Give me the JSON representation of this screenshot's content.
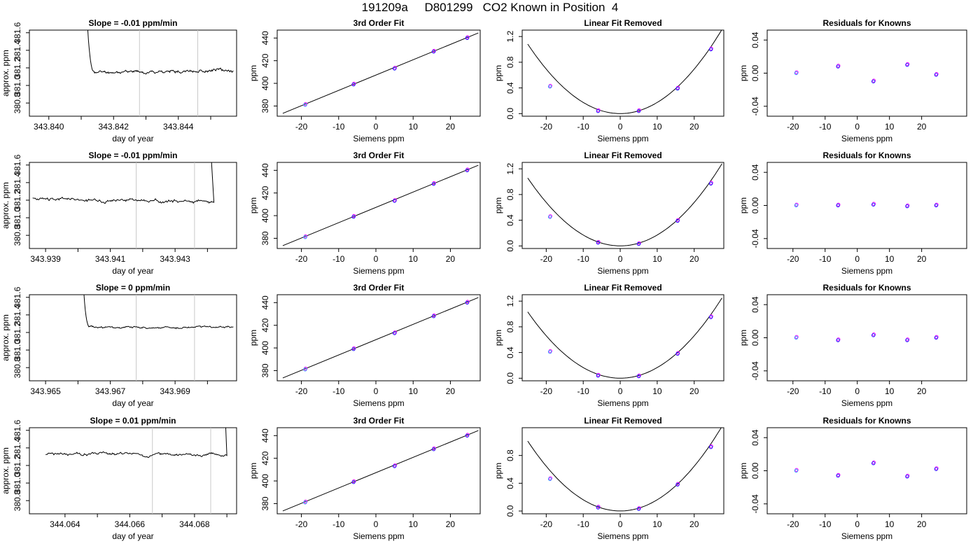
{
  "main_title": "191209a     D801299   CO2 Known in Position  4",
  "chart_data": [
    {
      "type": "line",
      "row": 1,
      "title": "Slope =  -0.01  ppm/min",
      "xlabel": "day of year",
      "ylabel": "approx. ppm",
      "xlim": [
        343.8394,
        343.8458
      ],
      "ylim": [
        380.65,
        381.63
      ],
      "xticks": [
        343.84,
        343.841,
        343.842,
        343.843,
        343.844,
        343.845
      ],
      "xtick_labels": [
        "343.840",
        "",
        "343.842",
        "",
        "343.844",
        ""
      ],
      "yticks": [
        380.8,
        381.0,
        381.2,
        381.4,
        381.6
      ],
      "ytick_labels": [
        "380.8",
        "381.0",
        "381.2",
        "381.4",
        "381.6"
      ],
      "vlines": [
        343.8428,
        343.8446
      ],
      "trace": {
        "x_start": 343.8411,
        "x_end": 343.8457,
        "spike_end": 343.84118,
        "baseline": 381.15,
        "end_level": 381.17,
        "noise": 0.012,
        "spike_at": "start",
        "seed": 11
      }
    },
    {
      "type": "line",
      "row": 2,
      "title": "Slope =  -0.01  ppm/min",
      "xlabel": "day of year",
      "ylabel": "approx. ppm",
      "xlim": [
        343.9385,
        343.9449
      ],
      "ylim": [
        380.65,
        381.63
      ],
      "xticks": [
        343.939,
        343.94,
        343.941,
        343.942,
        343.943,
        343.944
      ],
      "xtick_labels": [
        "343.939",
        "",
        "343.941",
        "",
        "343.943",
        ""
      ],
      "yticks": [
        380.8,
        381.0,
        381.2,
        381.4,
        381.6
      ],
      "ytick_labels": [
        "380.8",
        "381.0",
        "381.2",
        "381.4",
        "381.6"
      ],
      "vlines": [
        343.9418,
        343.9436
      ],
      "trace": {
        "x_start": 343.9386,
        "x_end": 343.9442,
        "spike_end": 343.94412,
        "baseline": 381.21,
        "end_level": 381.19,
        "noise": 0.014,
        "spike_at": "end",
        "seed": 23
      }
    },
    {
      "type": "line",
      "row": 3,
      "title": "Slope =  0  ppm/min",
      "xlabel": "day of year",
      "ylabel": "approx. ppm",
      "xlim": [
        343.9645,
        343.9709
      ],
      "ylim": [
        380.65,
        381.63
      ],
      "xticks": [
        343.965,
        343.966,
        343.967,
        343.968,
        343.969,
        343.97
      ],
      "xtick_labels": [
        "343.965",
        "",
        "343.967",
        "",
        "343.969",
        ""
      ],
      "yticks": [
        380.8,
        381.0,
        381.2,
        381.4,
        381.6
      ],
      "ytick_labels": [
        "380.8",
        "381.0",
        "381.2",
        "381.4",
        "381.6"
      ],
      "vlines": [
        343.9678,
        343.9696
      ],
      "trace": {
        "x_start": 343.9661,
        "x_end": 343.9708,
        "spike_end": 343.96614,
        "baseline": 381.26,
        "end_level": 381.26,
        "noise": 0.008,
        "spike_at": "start",
        "seed": 37
      }
    },
    {
      "type": "line",
      "row": 4,
      "title": "Slope =  0.01  ppm/min",
      "xlabel": "day of year",
      "ylabel": "approx. ppm",
      "xlim": [
        344.0629,
        344.0693
      ],
      "ylim": [
        380.65,
        381.63
      ],
      "xticks": [
        344.064,
        344.065,
        344.066,
        344.067,
        344.068,
        344.069
      ],
      "xtick_labels": [
        "344.064",
        "",
        "344.066",
        "",
        "344.068",
        ""
      ],
      "yticks": [
        380.8,
        381.0,
        381.2,
        381.4,
        381.6
      ],
      "ytick_labels": [
        "380.8",
        "381.0",
        "381.2",
        "381.4",
        "381.6"
      ],
      "vlines": [
        344.0667,
        344.0685
      ],
      "trace": {
        "x_start": 344.0634,
        "x_end": 344.069,
        "spike_end": 344.06896,
        "baseline": 381.33,
        "end_level": 381.32,
        "noise": 0.012,
        "spike_at": "end",
        "seed": 51
      }
    },
    {
      "type": "scatter",
      "row": 1,
      "title": "3rd Order Fit",
      "xlabel": "Siemens ppm",
      "ylabel": "ppm",
      "xlim": [
        -26.5,
        28
      ],
      "ylim": [
        371,
        447
      ],
      "xticks": [
        -20,
        -10,
        0,
        10,
        20
      ],
      "yticks": [
        380,
        400,
        420,
        440
      ],
      "points": [
        {
          "x": -19,
          "y": 381
        },
        {
          "x": -6,
          "y": 399
        },
        {
          "x": 5,
          "y": 413
        },
        {
          "x": 15.5,
          "y": 428
        },
        {
          "x": 24.5,
          "y": 440
        }
      ],
      "line": [
        {
          "x": -25,
          "y": 373.5
        },
        {
          "x": 27.5,
          "y": 444.5
        }
      ]
    },
    {
      "type": "scatter",
      "row": 2,
      "title": "3rd Order Fit",
      "xlabel": "Siemens ppm",
      "ylabel": "ppm",
      "xlim": [
        -26.5,
        28
      ],
      "ylim": [
        371,
        447
      ],
      "xticks": [
        -20,
        -10,
        0,
        10,
        20
      ],
      "yticks": [
        380,
        400,
        420,
        440
      ],
      "points": [
        {
          "x": -19,
          "y": 381
        },
        {
          "x": -6,
          "y": 399
        },
        {
          "x": 5,
          "y": 413
        },
        {
          "x": 15.5,
          "y": 428
        },
        {
          "x": 24.5,
          "y": 440
        }
      ],
      "line": [
        {
          "x": -25,
          "y": 373.5
        },
        {
          "x": 27.5,
          "y": 444.5
        }
      ]
    },
    {
      "type": "scatter",
      "row": 3,
      "title": "3rd Order Fit",
      "xlabel": "Siemens ppm",
      "ylabel": "ppm",
      "xlim": [
        -26.5,
        28
      ],
      "ylim": [
        371,
        447
      ],
      "xticks": [
        -20,
        -10,
        0,
        10,
        20
      ],
      "yticks": [
        380,
        400,
        420,
        440
      ],
      "points": [
        {
          "x": -19,
          "y": 381
        },
        {
          "x": -6,
          "y": 399
        },
        {
          "x": 5,
          "y": 413
        },
        {
          "x": 15.5,
          "y": 428
        },
        {
          "x": 24.5,
          "y": 440
        }
      ],
      "line": [
        {
          "x": -25,
          "y": 373.5
        },
        {
          "x": 27.5,
          "y": 444.5
        }
      ]
    },
    {
      "type": "scatter",
      "row": 4,
      "title": "3rd Order Fit",
      "xlabel": "Siemens ppm",
      "ylabel": "ppm",
      "xlim": [
        -26.5,
        28
      ],
      "ylim": [
        371,
        447
      ],
      "xticks": [
        -20,
        -10,
        0,
        10,
        20
      ],
      "yticks": [
        380,
        400,
        420,
        440
      ],
      "points": [
        {
          "x": -19,
          "y": 381
        },
        {
          "x": -6,
          "y": 399
        },
        {
          "x": 5,
          "y": 413
        },
        {
          "x": 15.5,
          "y": 428
        },
        {
          "x": 24.5,
          "y": 440
        }
      ],
      "line": [
        {
          "x": -25,
          "y": 373.5
        },
        {
          "x": 27.5,
          "y": 444.5
        }
      ]
    },
    {
      "type": "scatter",
      "row": 1,
      "title": "Linear Fit Removed",
      "xlabel": "Siemens ppm",
      "ylabel": "ppm",
      "xlim": [
        -26.5,
        28
      ],
      "ylim": [
        -0.04,
        1.3
      ],
      "xticks": [
        -20,
        -10,
        0,
        10,
        20
      ],
      "yticks": [
        0.0,
        0.4,
        0.8,
        1.2
      ],
      "ytick_labels": [
        "0.0",
        "0.4",
        "0.8",
        "1.2"
      ],
      "points": [
        {
          "x": -19,
          "y": 0.42
        },
        {
          "x": -6,
          "y": 0.04
        },
        {
          "x": 5,
          "y": 0.04
        },
        {
          "x": 15.5,
          "y": 0.39
        },
        {
          "x": 24.5,
          "y": 1.0
        }
      ],
      "curve": {
        "a": 0.00173,
        "b": 0,
        "c": 0.001,
        "x0": -25,
        "x1": 27.5
      }
    },
    {
      "type": "scatter",
      "row": 2,
      "title": "Linear Fit Removed",
      "xlabel": "Siemens ppm",
      "ylabel": "ppm",
      "xlim": [
        -26.5,
        28
      ],
      "ylim": [
        -0.04,
        1.3
      ],
      "xticks": [
        -20,
        -10,
        0,
        10,
        20
      ],
      "yticks": [
        0.0,
        0.4,
        0.8,
        1.2
      ],
      "ytick_labels": [
        "0.0",
        "0.4",
        "0.8",
        "1.2"
      ],
      "points": [
        {
          "x": -19,
          "y": 0.45
        },
        {
          "x": -6,
          "y": 0.05
        },
        {
          "x": 5,
          "y": 0.03
        },
        {
          "x": 15.5,
          "y": 0.39
        },
        {
          "x": 24.5,
          "y": 0.97
        }
      ],
      "curve": {
        "a": 0.00169,
        "b": 0,
        "c": 0.001,
        "x0": -25,
        "x1": 27.5
      }
    },
    {
      "type": "scatter",
      "row": 3,
      "title": "Linear Fit Removed",
      "xlabel": "Siemens ppm",
      "ylabel": "ppm",
      "xlim": [
        -26.5,
        28
      ],
      "ylim": [
        -0.04,
        1.3
      ],
      "xticks": [
        -20,
        -10,
        0,
        10,
        20
      ],
      "yticks": [
        0.0,
        0.4,
        0.8,
        1.2
      ],
      "ytick_labels": [
        "0.0",
        "0.4",
        "0.8",
        "1.2"
      ],
      "points": [
        {
          "x": -19,
          "y": 0.41
        },
        {
          "x": -6,
          "y": 0.04
        },
        {
          "x": 5,
          "y": 0.03
        },
        {
          "x": 15.5,
          "y": 0.38
        },
        {
          "x": 24.5,
          "y": 0.95
        }
      ],
      "curve": {
        "a": 0.00165,
        "b": 0,
        "c": 0.001,
        "x0": -25,
        "x1": 27.5
      }
    },
    {
      "type": "scatter",
      "row": 4,
      "title": "Linear Fit Removed",
      "xlabel": "Siemens ppm",
      "ylabel": "ppm",
      "xlim": [
        -26.5,
        28
      ],
      "ylim": [
        -0.04,
        1.2
      ],
      "xticks": [
        -20,
        -10,
        0,
        10,
        20
      ],
      "yticks": [
        0.0,
        0.4,
        0.8
      ],
      "ytick_labels": [
        "0.0",
        "0.4",
        "0.8"
      ],
      "points": [
        {
          "x": -19,
          "y": 0.46
        },
        {
          "x": -6,
          "y": 0.05
        },
        {
          "x": 5,
          "y": 0.03
        },
        {
          "x": 15.5,
          "y": 0.38
        },
        {
          "x": 24.5,
          "y": 0.92
        }
      ],
      "curve": {
        "a": 0.00161,
        "b": 0,
        "c": 0.001,
        "x0": -25,
        "x1": 27.5
      }
    },
    {
      "type": "scatter",
      "row": 1,
      "title": "Residuals for Knowns",
      "xlabel": "Siemens ppm",
      "ylabel": "ppm",
      "xlim": [
        -28,
        34
      ],
      "ylim": [
        -0.052,
        0.052
      ],
      "xticks": [
        -20,
        -10,
        0,
        10,
        20
      ],
      "yticks": [
        -0.04,
        0.0,
        0.04
      ],
      "ytick_labels": [
        "-0.04",
        "0.00",
        "0.04"
      ],
      "points": [
        {
          "x": -19,
          "y": 0.0
        },
        {
          "x": -6,
          "y": 0.008
        },
        {
          "x": 5,
          "y": -0.01
        },
        {
          "x": 15.5,
          "y": 0.01
        },
        {
          "x": 24.5,
          "y": -0.002
        }
      ]
    },
    {
      "type": "scatter",
      "row": 2,
      "title": "Residuals for Knowns",
      "xlabel": "Siemens ppm",
      "ylabel": "ppm",
      "xlim": [
        -28,
        34
      ],
      "ylim": [
        -0.052,
        0.052
      ],
      "xticks": [
        -20,
        -10,
        0,
        10,
        20
      ],
      "yticks": [
        -0.04,
        0.0,
        0.04
      ],
      "ytick_labels": [
        "-0.04",
        "0.00",
        "0.04"
      ],
      "points": [
        {
          "x": -19,
          "y": 0.0
        },
        {
          "x": -6,
          "y": 0.0
        },
        {
          "x": 5,
          "y": 0.001
        },
        {
          "x": 15.5,
          "y": -0.001
        },
        {
          "x": 24.5,
          "y": 0.0
        }
      ]
    },
    {
      "type": "scatter",
      "row": 3,
      "title": "Residuals for Knowns",
      "xlabel": "Siemens ppm",
      "ylabel": "ppm",
      "xlim": [
        -28,
        34
      ],
      "ylim": [
        -0.052,
        0.052
      ],
      "xticks": [
        -20,
        -10,
        0,
        10,
        20
      ],
      "yticks": [
        -0.04,
        0.0,
        0.04
      ],
      "ytick_labels": [
        "-0.04",
        "0.00",
        "0.04"
      ],
      "points": [
        {
          "x": -19,
          "y": 0.0
        },
        {
          "x": -6,
          "y": -0.003
        },
        {
          "x": 5,
          "y": 0.003
        },
        {
          "x": 15.5,
          "y": -0.003
        },
        {
          "x": 24.5,
          "y": 0.0
        }
      ]
    },
    {
      "type": "scatter",
      "row": 4,
      "title": "Residuals for Knowns",
      "xlabel": "Siemens ppm",
      "ylabel": "ppm",
      "xlim": [
        -28,
        34
      ],
      "ylim": [
        -0.052,
        0.052
      ],
      "xticks": [
        -20,
        -10,
        0,
        10,
        20
      ],
      "yticks": [
        -0.04,
        0.0,
        0.04
      ],
      "ytick_labels": [
        "-0.04",
        "0.00",
        "0.04"
      ],
      "points": [
        {
          "x": -19,
          "y": 0.0
        },
        {
          "x": -6,
          "y": -0.006
        },
        {
          "x": 5,
          "y": 0.009
        },
        {
          "x": 15.5,
          "y": -0.007
        },
        {
          "x": 24.5,
          "y": 0.002
        }
      ]
    }
  ],
  "colors": {
    "trace": "#000000",
    "vline": "#c8c8c8",
    "point_primary": "#1f1fff",
    "point_secondary": "#ff00ff",
    "point_tertiary": "#3399ff",
    "fit_line": "#000000"
  }
}
